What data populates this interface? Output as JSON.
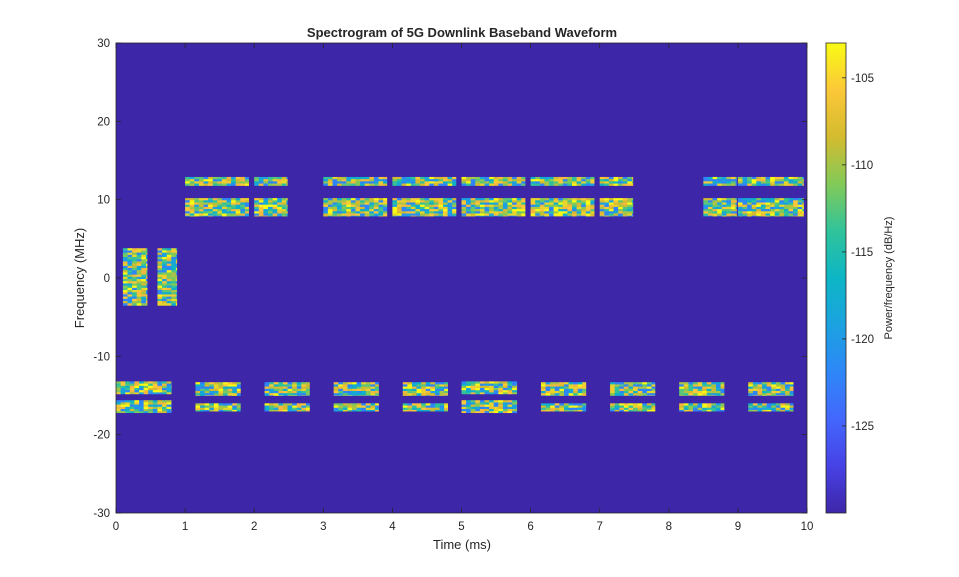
{
  "chart_data": {
    "type": "heatmap",
    "title": "Spectrogram of 5G Downlink Baseband Waveform",
    "xlabel": "Time (ms)",
    "ylabel": "Frequency (MHz)",
    "xlim": [
      0,
      10
    ],
    "ylim": [
      -30,
      30
    ],
    "xticks": [
      "0",
      "1",
      "2",
      "3",
      "4",
      "5",
      "6",
      "7",
      "8",
      "9",
      "10"
    ],
    "yticks": [
      "-30",
      "-20",
      "-10",
      "0",
      "10",
      "20",
      "30"
    ],
    "background_color": "#3e26a8",
    "colorbar": {
      "label": "Power/frequency (dB/Hz)",
      "range": [
        -130,
        -103
      ],
      "ticks": [
        "-105",
        "-110",
        "-115",
        "-120",
        "-125"
      ],
      "colormap": "parula"
    },
    "regions": [
      {
        "t": [
          0.1,
          0.45
        ],
        "f": [
          -3.5,
          3.8
        ]
      },
      {
        "t": [
          0.6,
          0.88
        ],
        "f": [
          -3.5,
          3.8
        ]
      },
      {
        "t": [
          1.0,
          1.92
        ],
        "f": [
          11.8,
          12.9
        ]
      },
      {
        "t": [
          2.0,
          2.48
        ],
        "f": [
          11.8,
          12.9
        ]
      },
      {
        "t": [
          3.0,
          3.92
        ],
        "f": [
          11.8,
          12.9
        ]
      },
      {
        "t": [
          4.0,
          4.92
        ],
        "f": [
          11.8,
          12.9
        ]
      },
      {
        "t": [
          5.0,
          5.92
        ],
        "f": [
          11.8,
          12.9
        ]
      },
      {
        "t": [
          6.0,
          6.92
        ],
        "f": [
          11.8,
          12.9
        ]
      },
      {
        "t": [
          7.0,
          7.48
        ],
        "f": [
          11.8,
          12.9
        ]
      },
      {
        "t": [
          8.5,
          8.98
        ],
        "f": [
          11.8,
          12.9
        ]
      },
      {
        "t": [
          9.0,
          9.95
        ],
        "f": [
          11.8,
          12.9
        ]
      },
      {
        "t": [
          1.0,
          1.92
        ],
        "f": [
          7.9,
          10.2
        ]
      },
      {
        "t": [
          2.0,
          2.48
        ],
        "f": [
          7.9,
          10.2
        ]
      },
      {
        "t": [
          3.0,
          3.92
        ],
        "f": [
          7.9,
          10.2
        ]
      },
      {
        "t": [
          4.0,
          4.92
        ],
        "f": [
          7.9,
          10.2
        ]
      },
      {
        "t": [
          5.0,
          5.92
        ],
        "f": [
          7.9,
          10.2
        ]
      },
      {
        "t": [
          6.0,
          6.92
        ],
        "f": [
          7.9,
          10.2
        ]
      },
      {
        "t": [
          7.0,
          7.48
        ],
        "f": [
          7.9,
          10.2
        ]
      },
      {
        "t": [
          8.5,
          8.98
        ],
        "f": [
          7.9,
          10.2
        ]
      },
      {
        "t": [
          9.0,
          9.95
        ],
        "f": [
          7.9,
          10.2
        ]
      },
      {
        "t": [
          0.0,
          0.8
        ],
        "f": [
          -14.8,
          -13.2
        ]
      },
      {
        "t": [
          1.15,
          1.8
        ],
        "f": [
          -15.0,
          -13.3
        ]
      },
      {
        "t": [
          2.15,
          2.8
        ],
        "f": [
          -15.0,
          -13.3
        ]
      },
      {
        "t": [
          3.15,
          3.8
        ],
        "f": [
          -15.0,
          -13.3
        ]
      },
      {
        "t": [
          4.15,
          4.8
        ],
        "f": [
          -15.0,
          -13.3
        ]
      },
      {
        "t": [
          5.0,
          5.8
        ],
        "f": [
          -14.8,
          -13.2
        ]
      },
      {
        "t": [
          6.15,
          6.8
        ],
        "f": [
          -15.0,
          -13.3
        ]
      },
      {
        "t": [
          7.15,
          7.8
        ],
        "f": [
          -15.0,
          -13.3
        ]
      },
      {
        "t": [
          8.15,
          8.8
        ],
        "f": [
          -15.0,
          -13.3
        ]
      },
      {
        "t": [
          9.15,
          9.8
        ],
        "f": [
          -15.0,
          -13.3
        ]
      },
      {
        "t": [
          0.0,
          0.8
        ],
        "f": [
          -17.2,
          -15.6
        ]
      },
      {
        "t": [
          1.15,
          1.8
        ],
        "f": [
          -17.0,
          -16.0
        ]
      },
      {
        "t": [
          2.15,
          2.8
        ],
        "f": [
          -17.0,
          -16.0
        ]
      },
      {
        "t": [
          3.15,
          3.8
        ],
        "f": [
          -17.0,
          -16.0
        ]
      },
      {
        "t": [
          4.15,
          4.8
        ],
        "f": [
          -17.0,
          -16.0
        ]
      },
      {
        "t": [
          5.0,
          5.8
        ],
        "f": [
          -17.2,
          -15.6
        ]
      },
      {
        "t": [
          6.15,
          6.8
        ],
        "f": [
          -17.0,
          -16.0
        ]
      },
      {
        "t": [
          7.15,
          7.8
        ],
        "f": [
          -17.0,
          -16.0
        ]
      },
      {
        "t": [
          8.15,
          8.8
        ],
        "f": [
          -17.0,
          -16.0
        ]
      },
      {
        "t": [
          9.15,
          9.8
        ],
        "f": [
          -17.0,
          -16.0
        ]
      }
    ]
  }
}
